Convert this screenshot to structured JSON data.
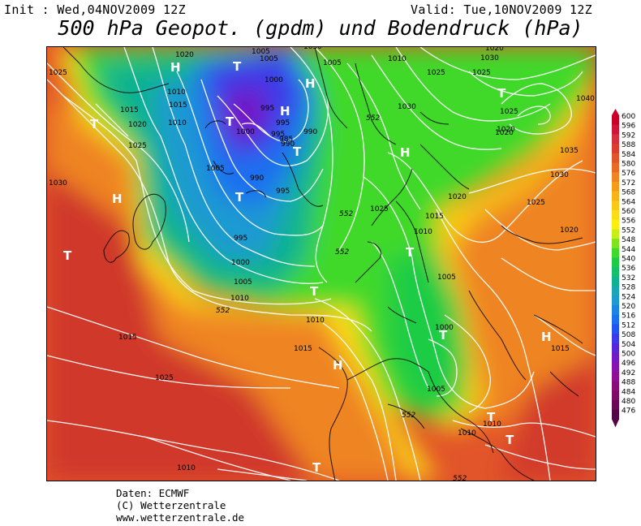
{
  "header": {
    "init_label": "Init : Wed,04NOV2009 12Z",
    "valid_label": "Valid: Tue,10NOV2009 12Z",
    "title": "500 hPa Geopot. (gpdm) und Bodendruck (hPa)"
  },
  "legend": {
    "values": [
      600,
      596,
      592,
      588,
      584,
      580,
      576,
      572,
      568,
      564,
      560,
      556,
      552,
      548,
      544,
      540,
      536,
      532,
      528,
      524,
      520,
      516,
      512,
      508,
      504,
      500,
      496,
      492,
      488,
      484,
      480,
      476
    ],
    "colors": [
      "#c8002a",
      "#d1143a",
      "#d62f3f",
      "#dc3d2e",
      "#e2552a",
      "#e86a25",
      "#ef8420",
      "#f49c1a",
      "#f7b318",
      "#f9c916",
      "#fbdd13",
      "#fcee10",
      "#c8ee18",
      "#7fe41e",
      "#3fd92c",
      "#1ccc44",
      "#15c06b",
      "#10b28f",
      "#18a7b4",
      "#1d9ad2",
      "#1a86e3",
      "#1a70ef",
      "#2454f0",
      "#3c3ae8",
      "#5626d8",
      "#7218c6",
      "#8612b0",
      "#900f94",
      "#8a0c7a",
      "#7e0a66",
      "#6a0855",
      "#520643"
    ]
  },
  "map": {
    "pressure_labels": [
      "1020",
      "1005",
      "1005",
      "1010",
      "1015",
      "1020",
      "1025",
      "1015",
      "1010",
      "1000",
      "995",
      "1000",
      "995",
      "990",
      "1005",
      "990",
      "995",
      "1000",
      "1005",
      "1010",
      "995",
      "995",
      "990",
      "985",
      "1030",
      "1025",
      "1025",
      "1025",
      "1030",
      "1025",
      "1020",
      "1040",
      "1035",
      "1030",
      "1025",
      "1020",
      "1020",
      "1015",
      "1010",
      "1005",
      "1000",
      "1005",
      "1010",
      "1015",
      "1010",
      "1010",
      "1025",
      "1030",
      "1025",
      "1020",
      "1015",
      "1015",
      "1010",
      "1010",
      "1005",
      "1020",
      "1030"
    ],
    "geopotential_labels": [
      "552",
      "552",
      "552",
      "552",
      "552",
      "552"
    ],
    "highs": [
      "H",
      "H",
      "H",
      "H",
      "H",
      "H",
      "H"
    ],
    "lows": [
      "T",
      "T",
      "T",
      "T",
      "T",
      "T",
      "T",
      "T",
      "T",
      "T",
      "T",
      "T",
      "T"
    ]
  },
  "credits": {
    "line1": "Daten: ECMWF",
    "line2": "(C) Wetterzentrale",
    "line3": "www.wetterzentrale.de"
  }
}
